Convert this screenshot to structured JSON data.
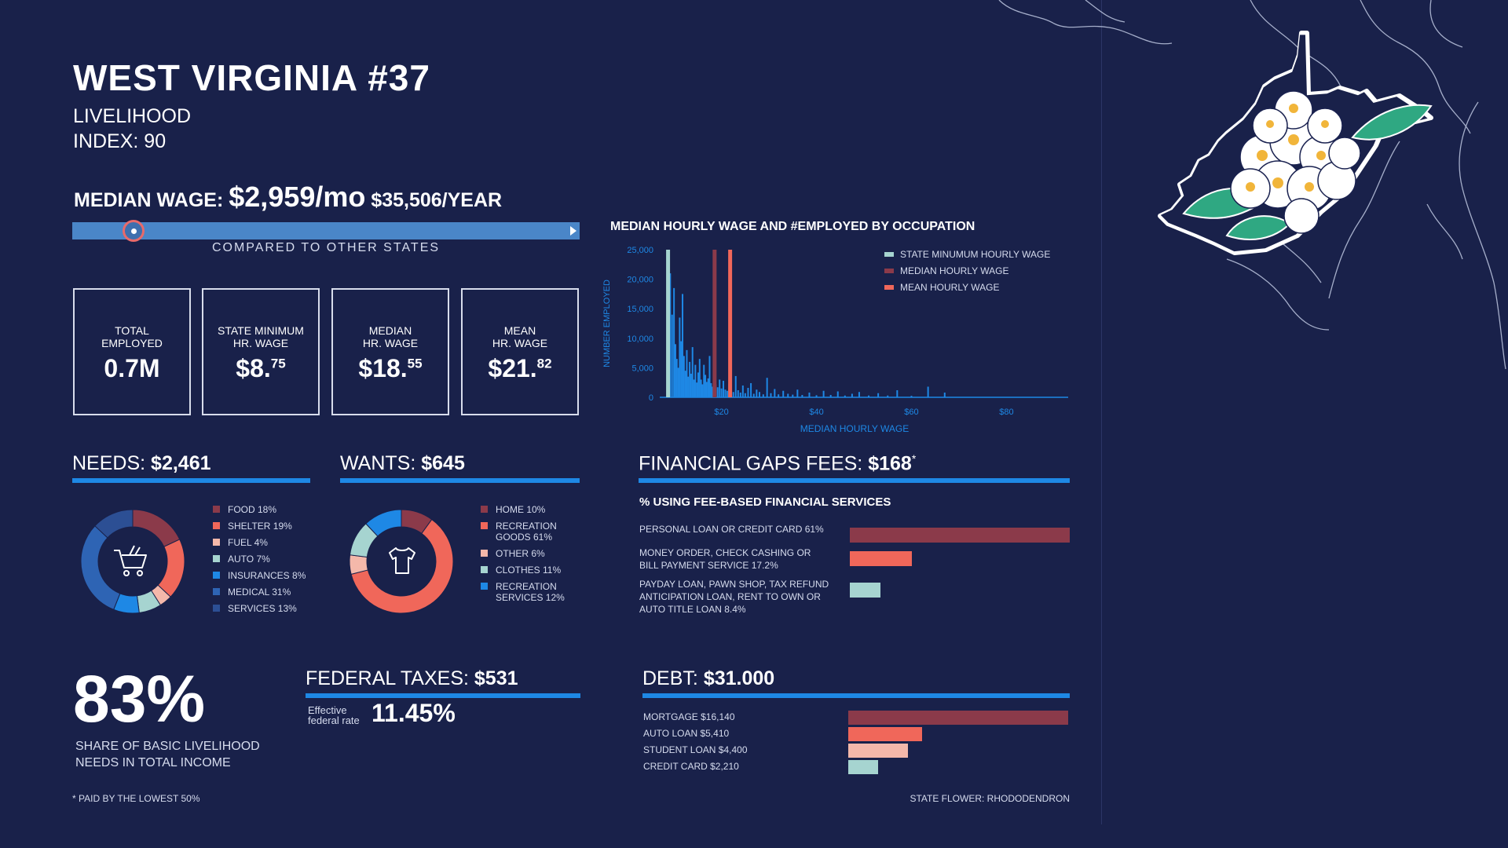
{
  "header": {
    "title": "WEST VIRGINIA #37",
    "line1": "LIVELIHOOD",
    "line2": "INDEX: 90"
  },
  "wage": {
    "label": "MEDIAN WAGE:",
    "monthly": "$2,959/mo",
    "yearly": "$35,506/YEAR",
    "compared": "COMPARED TO OTHER STATES",
    "state_rank_fraction": 0.12
  },
  "stats": [
    {
      "label1": "TOTAL",
      "label2": "EMPLOYED",
      "value": "0.7M",
      "sup": ""
    },
    {
      "label1": "STATE MINIMUM",
      "label2": "HR. WAGE",
      "value": "$8.",
      "sup": "75"
    },
    {
      "label1": "MEDIAN",
      "label2": "HR. WAGE",
      "value": "$18.",
      "sup": "55"
    },
    {
      "label1": "MEAN",
      "label2": "HR. WAGE",
      "value": "$21.",
      "sup": "82"
    }
  ],
  "needs": {
    "label": "NEEDS:",
    "value": "$2,461",
    "icon": "shopping-cart-icon"
  },
  "wants": {
    "label": "WANTS:",
    "value": "$645",
    "icon": "t-shirt-icon"
  },
  "fin": {
    "label": "FINANCIAL GAPS FEES:",
    "value": "$168",
    "star": "*",
    "subtitle": "% USING FEE-BASED FINANCIAL SERVICES"
  },
  "taxes": {
    "label": "FEDERAL TAXES:",
    "value": "$531",
    "rate_label1": "Effective",
    "rate_label2": "federal rate",
    "rate": "11.45%"
  },
  "debt": {
    "label": "DEBT:",
    "value": "$31.000"
  },
  "share": {
    "value": "83%",
    "line1": "SHARE OF BASIC LIVELIHOOD",
    "line2": "NEEDS IN TOTAL INCOME"
  },
  "footer": {
    "left": "* PAID BY THE LOWEST 50%",
    "right": "STATE FLOWER: RHODODENDRON"
  },
  "colors": {
    "bg": "#19214a",
    "accent": "#1e88e5",
    "min_wage": "#a6d4d0",
    "median": "#8b3a4a",
    "mean": "#f0675a"
  },
  "chart_data": [
    {
      "type": "bar",
      "title": "MEDIAN HOURLY WAGE AND #EMPLOYED BY OCCUPATION",
      "xlabel": "MEDIAN HOURLY WAGE",
      "ylabel": "NUMBER EMPLOYED",
      "xlim": [
        7,
        93
      ],
      "ylim": [
        0,
        25000
      ],
      "xticks": [
        "$20",
        "$40",
        "$60",
        "$80"
      ],
      "xtick_values": [
        20,
        40,
        60,
        80
      ],
      "yticks": [
        "25,000",
        "20,000",
        "15,000",
        "10,000",
        "5,000",
        "0"
      ],
      "ytick_values": [
        25000,
        20000,
        15000,
        10000,
        5000,
        0
      ],
      "legend": [
        "STATE MINUMUM HOURLY WAGE",
        "MEDIAN HOURLY WAGE",
        "MEAN HOURLY WAGE"
      ],
      "legend_position": "top-right",
      "reference_lines": [
        {
          "name": "STATE MINUMUM HOURLY WAGE",
          "x": 8.75,
          "color": "#a6d4d0"
        },
        {
          "name": "MEDIAN HOURLY WAGE",
          "x": 18.55,
          "color": "#8b3a4a"
        },
        {
          "name": "MEAN HOURLY WAGE",
          "x": 21.82,
          "color": "#f0675a"
        }
      ],
      "x": [
        9.2,
        9.6,
        10.0,
        10.3,
        10.6,
        10.9,
        11.2,
        11.5,
        11.8,
        12.1,
        12.4,
        12.7,
        13.0,
        13.3,
        13.6,
        13.9,
        14.2,
        14.5,
        14.8,
        15.1,
        15.4,
        15.7,
        16.0,
        16.3,
        16.6,
        16.9,
        17.2,
        17.5,
        17.8,
        18.1,
        18.4,
        18.8,
        19.2,
        19.6,
        20.0,
        20.4,
        20.8,
        21.2,
        21.6,
        22.0,
        22.5,
        23.0,
        23.5,
        24.0,
        24.5,
        25.0,
        25.6,
        26.2,
        26.8,
        27.4,
        28.0,
        28.8,
        29.6,
        30.4,
        31.2,
        32.0,
        33.0,
        34.0,
        35.0,
        36.0,
        37.0,
        38.5,
        40.0,
        41.5,
        43.0,
        44.5,
        46.0,
        47.5,
        49.0,
        51.0,
        53.0,
        55.0,
        57.0,
        60.0,
        63.5,
        67.0
      ],
      "values": [
        21000,
        14000,
        18500,
        9000,
        6500,
        5000,
        13500,
        9500,
        17500,
        7000,
        4500,
        8000,
        3500,
        6000,
        4000,
        8500,
        3000,
        5500,
        2500,
        4200,
        6500,
        3000,
        2200,
        5500,
        3800,
        2600,
        3200,
        7000,
        2400,
        1800,
        4600,
        2200,
        1700,
        3000,
        1500,
        2800,
        1300,
        1100,
        2300,
        1000,
        900,
        3600,
        1200,
        800,
        2000,
        700,
        1600,
        2400,
        600,
        1300,
        900,
        500,
        3300,
        700,
        1400,
        500,
        1100,
        600,
        450,
        1300,
        400,
        800,
        350,
        1100,
        400,
        1000,
        300,
        600,
        900,
        300,
        700,
        300,
        1200,
        250,
        1800,
        800
      ]
    },
    {
      "type": "pie",
      "title": "NEEDS",
      "categories": [
        "FOOD 18%",
        "SHELTER 19%",
        "FUEL 4%",
        "AUTO 7%",
        "INSURANCES 8%",
        "MEDICAL 31%",
        "SERVICES 13%"
      ],
      "values": [
        18,
        19,
        4,
        7,
        8,
        31,
        13
      ],
      "colors": [
        "#8b3a4a",
        "#f0675a",
        "#f4b8aa",
        "#a6d4d0",
        "#1e88e5",
        "#2e64b4",
        "#2c4f94"
      ]
    },
    {
      "type": "pie",
      "title": "WANTS",
      "categories": [
        "HOME 10%",
        "RECREATION GOODS 61%",
        "OTHER 6%",
        "CLOTHES 11%",
        "RECREATION SERVICES 12%"
      ],
      "labels_wrapped": [
        [
          "HOME 10%"
        ],
        [
          "RECREATION",
          "GOODS 61%"
        ],
        [
          "OTHER 6%"
        ],
        [
          "CLOTHES 11%"
        ],
        [
          "RECREATION",
          "SERVICES 12%"
        ]
      ],
      "values": [
        10,
        61,
        6,
        11,
        12
      ],
      "colors": [
        "#8b3a4a",
        "#f0675a",
        "#f4b8aa",
        "#a6d4d0",
        "#1e88e5"
      ]
    },
    {
      "type": "bar",
      "title": "% USING FEE-BASED FINANCIAL SERVICES",
      "categories": [
        "PERSONAL LOAN OR CREDIT CARD 61%",
        "MONEY ORDER, CHECK CASHING OR BILL PAYMENT SERVICE 17.2%",
        "PAYDAY LOAN, PAWN SHOP, TAX REFUND ANTICIPATION LOAN, RENT TO OWN OR AUTO TITLE LOAN 8.4%"
      ],
      "labels_wrapped": [
        [
          "PERSONAL LOAN OR CREDIT CARD 61%"
        ],
        [
          "MONEY ORDER, CHECK CASHING OR",
          "BILL PAYMENT SERVICE 17.2%"
        ],
        [
          "PAYDAY LOAN, PAWN SHOP, TAX REFUND",
          "ANTICIPATION LOAN, RENT TO OWN OR",
          "AUTO TITLE LOAN 8.4%"
        ]
      ],
      "values": [
        61,
        17.2,
        8.4
      ],
      "colors": [
        "#8b3a4a",
        "#f0675a",
        "#a6d4d0"
      ]
    },
    {
      "type": "bar",
      "title": "DEBT",
      "categories": [
        "MORTGAGE $16,140",
        "AUTO LOAN $5,410",
        "STUDENT LOAN $4,400",
        "CREDIT CARD $2,210"
      ],
      "values": [
        16140,
        5410,
        4400,
        2210
      ],
      "colors": [
        "#8b3a4a",
        "#f0675a",
        "#f4b8aa",
        "#a6d4d0"
      ]
    }
  ]
}
